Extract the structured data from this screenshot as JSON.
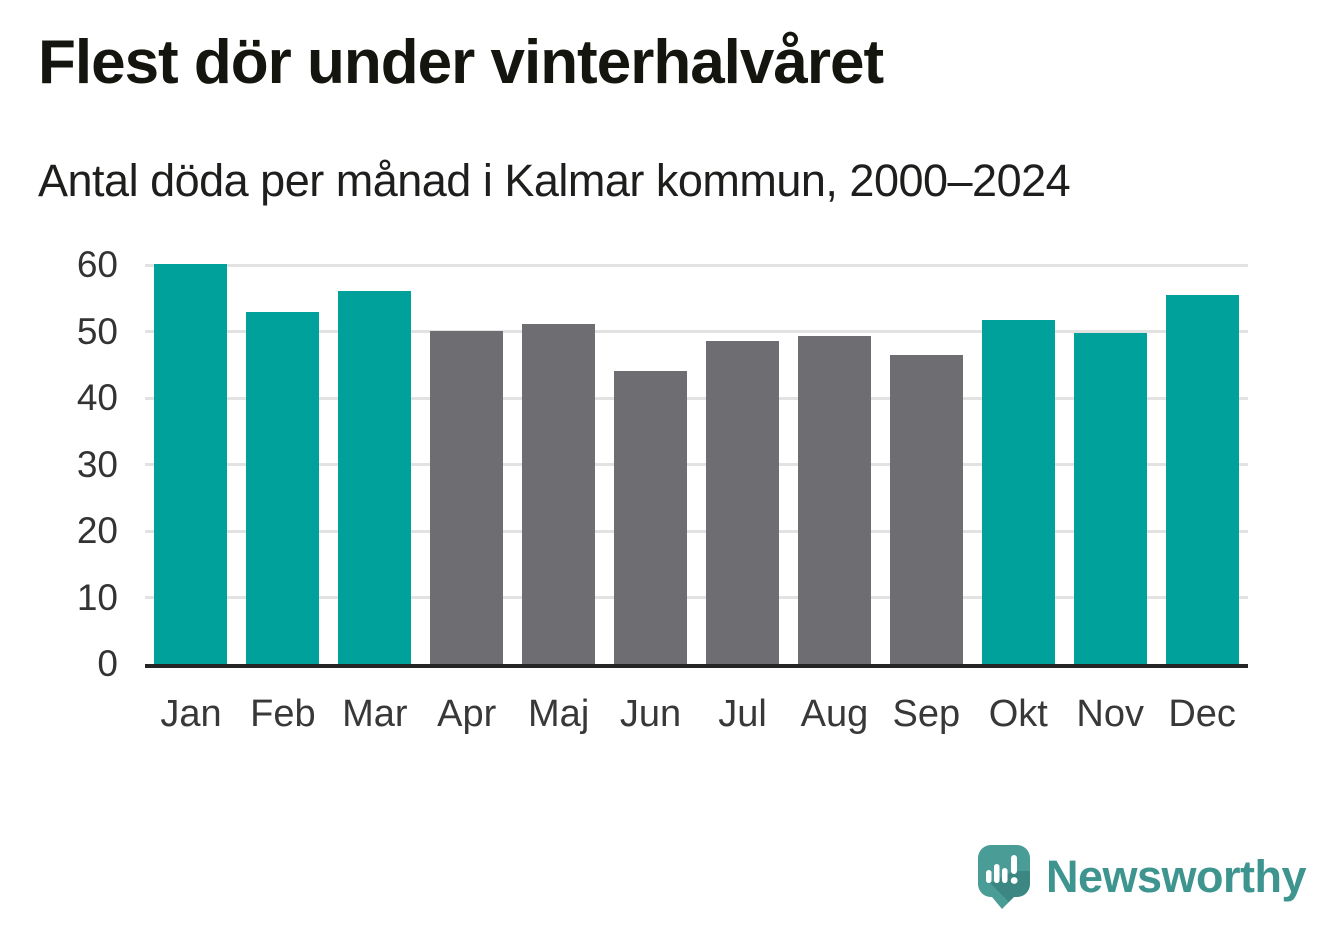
{
  "title": "Flest dör under vinterhalvåret",
  "subtitle": "Antal döda per månad i Kalmar kommun, 2000–2024",
  "branding": {
    "logo_text": "Newsworthy"
  },
  "colors": {
    "winter": "#00a19a",
    "summer": "#6d6d72",
    "grid": "#e2e2e2",
    "axis": "#252525",
    "logo_teal": "#3e948e",
    "logo_bubble": "#4a9c96"
  },
  "chart_data": {
    "type": "bar",
    "title": "Flest dör under vinterhalvåret",
    "subtitle": "Antal döda per månad i Kalmar kommun, 2000–2024",
    "categories": [
      "Jan",
      "Feb",
      "Mar",
      "Apr",
      "Maj",
      "Jun",
      "Jul",
      "Aug",
      "Sep",
      "Okt",
      "Nov",
      "Dec"
    ],
    "values": [
      60.1,
      53.0,
      56.1,
      50.1,
      51.1,
      44.1,
      48.5,
      49.4,
      46.4,
      51.7,
      49.8,
      55.5
    ],
    "bar_colors": [
      "winter",
      "winter",
      "winter",
      "summer",
      "summer",
      "summer",
      "summer",
      "summer",
      "summer",
      "winter",
      "winter",
      "winter"
    ],
    "xlabel": "",
    "ylabel": "",
    "ylim": [
      0,
      60
    ],
    "yticks": [
      0,
      10,
      20,
      30,
      40,
      50,
      60
    ],
    "grid": "horizontal",
    "legend": "none"
  }
}
